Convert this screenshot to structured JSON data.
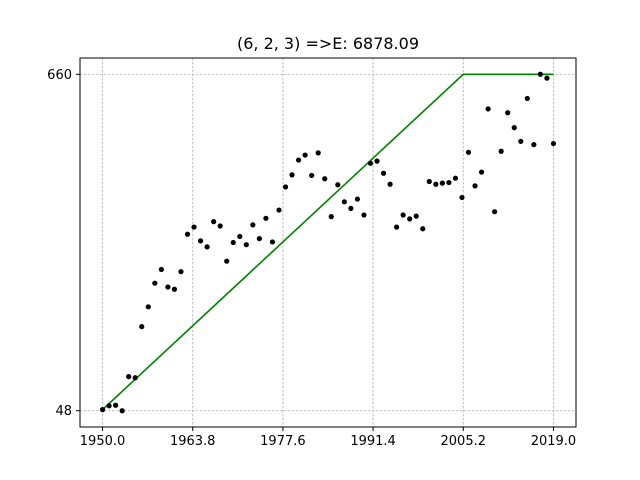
{
  "chart_data": {
    "type": "scatter",
    "title": "(6, 2, 3) =>E: 6878.09",
    "xlabel": "",
    "ylabel": "",
    "xlim": [
      1946.55,
      2022.45
    ],
    "ylim": [
      18.4,
      689.6
    ],
    "x_ticks": [
      1950.0,
      1963.8,
      1977.6,
      1991.4,
      2005.2,
      2019.0
    ],
    "x_tick_labels": [
      "1950.0",
      "1963.8",
      "1977.6",
      "1991.4",
      "2005.2",
      "2019.0"
    ],
    "y_ticks": [
      48,
      660
    ],
    "y_tick_labels": [
      "48",
      "660"
    ],
    "grid": true,
    "grid_style": "dashed",
    "series": [
      {
        "kind": "scatter",
        "color": "#000000",
        "points": [
          [
            1950,
            50
          ],
          [
            1951,
            57
          ],
          [
            1952,
            58
          ],
          [
            1953,
            48
          ],
          [
            1954,
            110
          ],
          [
            1955,
            108
          ],
          [
            1956,
            201
          ],
          [
            1957,
            237
          ],
          [
            1958,
            280
          ],
          [
            1959,
            305
          ],
          [
            1960,
            273
          ],
          [
            1961,
            269
          ],
          [
            1962,
            301
          ],
          [
            1963,
            369
          ],
          [
            1964,
            382
          ],
          [
            1965,
            357
          ],
          [
            1966,
            346
          ],
          [
            1967,
            392
          ],
          [
            1968,
            384
          ],
          [
            1969,
            320
          ],
          [
            1970,
            354
          ],
          [
            1971,
            365
          ],
          [
            1972,
            350
          ],
          [
            1973,
            386
          ],
          [
            1974,
            361
          ],
          [
            1975,
            398
          ],
          [
            1976,
            355
          ],
          [
            1977,
            413
          ],
          [
            1978,
            455
          ],
          [
            1979,
            477
          ],
          [
            1980,
            504
          ],
          [
            1981,
            513
          ],
          [
            1982,
            476
          ],
          [
            1983,
            517
          ],
          [
            1984,
            470
          ],
          [
            1985,
            401
          ],
          [
            1986,
            459
          ],
          [
            1987,
            428
          ],
          [
            1988,
            416
          ],
          [
            1989,
            433
          ],
          [
            1990,
            404
          ],
          [
            1991,
            498
          ],
          [
            1992,
            502
          ],
          [
            1993,
            480
          ],
          [
            1994,
            460
          ],
          [
            1995,
            382
          ],
          [
            1996,
            404
          ],
          [
            1997,
            397
          ],
          [
            1998,
            402
          ],
          [
            1999,
            379
          ],
          [
            2000,
            465
          ],
          [
            2001,
            460
          ],
          [
            2002,
            462
          ],
          [
            2003,
            463
          ],
          [
            2004,
            471
          ],
          [
            2005,
            436
          ],
          [
            2006,
            518
          ],
          [
            2007,
            457
          ],
          [
            2008,
            482
          ],
          [
            2009,
            597
          ],
          [
            2010,
            410
          ],
          [
            2011,
            520
          ],
          [
            2012,
            590
          ],
          [
            2013,
            563
          ],
          [
            2014,
            538
          ],
          [
            2015,
            616
          ],
          [
            2016,
            532
          ],
          [
            2017,
            660
          ],
          [
            2018,
            653
          ],
          [
            2019,
            534
          ]
        ]
      },
      {
        "kind": "line",
        "color": "#008000",
        "points": [
          [
            1950,
            50
          ],
          [
            2005.2,
            660
          ],
          [
            2019,
            660
          ]
        ]
      }
    ]
  }
}
